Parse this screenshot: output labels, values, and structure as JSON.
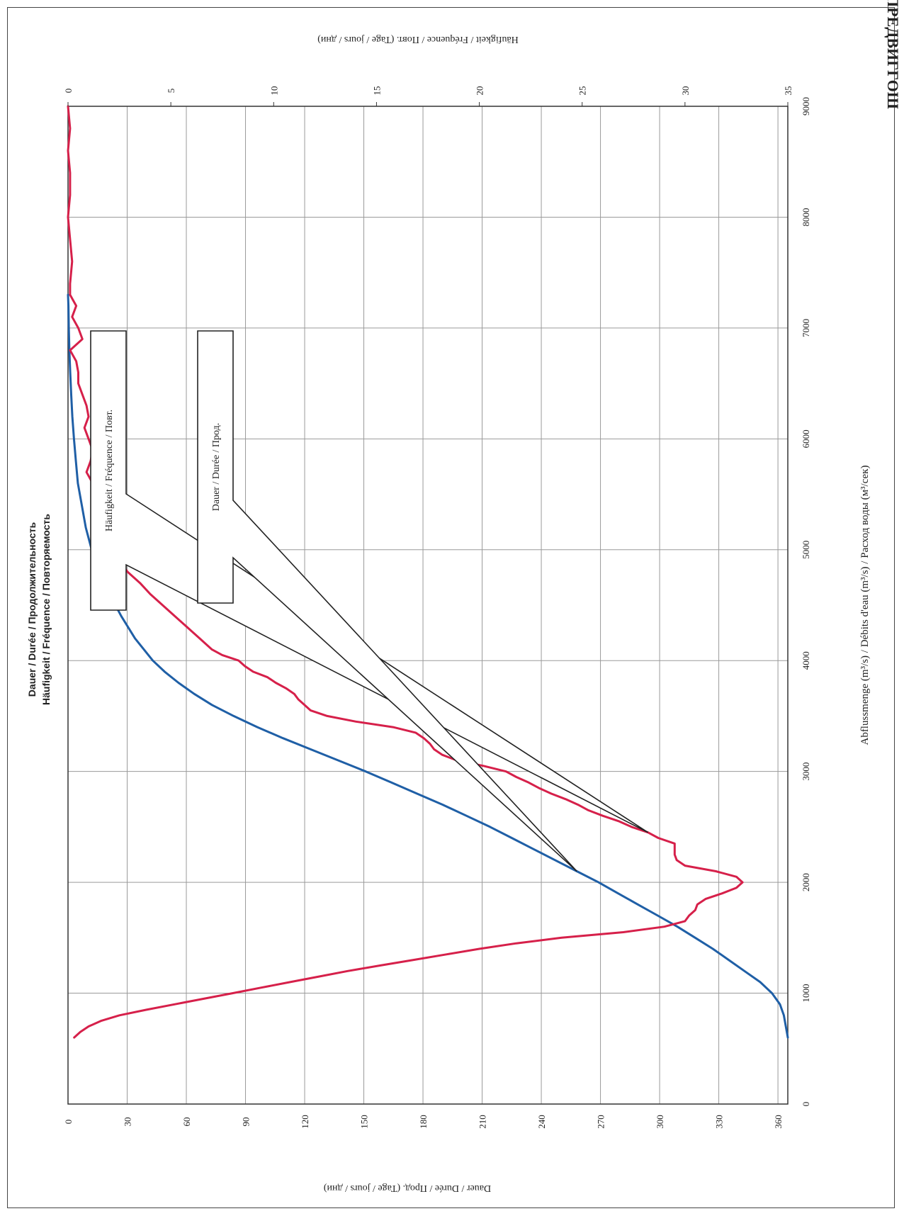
{
  "header_fragment": "ПРЕДВИГГОШ",
  "chart_data": {
    "type": "line",
    "title": "Dauer / Durée / Продолжительность",
    "subtitle": "Häufigkeit /  Fréquence / Повторяемость",
    "xlabel": "Abflussmenge  (m³/s) / Débits d'eau (m³/s) / Расход воды (м³/сек)",
    "ylabel_left": "Dauer / Durée / Прод. (Tage / jours / дни)",
    "ylabel_right": "Häufigkeit /  Fréquence / Повт. (Tage / jours / дни)",
    "xlim": [
      0,
      9000
    ],
    "ylim_left": [
      0,
      365
    ],
    "ylim_right": [
      0,
      35
    ],
    "x_ticks": [
      "0",
      "1000",
      "2000",
      "3000",
      "4000",
      "5000",
      "6000",
      "7000",
      "8000",
      "9000"
    ],
    "y_ticks_left": [
      "0",
      "30",
      "60",
      "90",
      "120",
      "150",
      "180",
      "210",
      "240",
      "270",
      "300",
      "330",
      "360"
    ],
    "y_ticks_right": [
      "0",
      "5",
      "10",
      "15",
      "20",
      "25",
      "30",
      "35"
    ],
    "grid": true,
    "series": [
      {
        "name": "Dauer / Durée / Прод.",
        "axis": "left",
        "color": "#1f5fa6",
        "x": [
          600,
          700,
          800,
          900,
          1000,
          1100,
          1200,
          1300,
          1400,
          1500,
          1600,
          1700,
          1800,
          1900,
          2000,
          2100,
          2200,
          2300,
          2400,
          2500,
          2600,
          2700,
          2800,
          2900,
          3000,
          3100,
          3200,
          3300,
          3400,
          3500,
          3600,
          3700,
          3800,
          3900,
          4000,
          4200,
          4400,
          4600,
          4800,
          5000,
          5200,
          5400,
          5600,
          5800,
          6000,
          6200,
          6400,
          6600,
          6800,
          7000,
          7200,
          7300
        ],
        "y": [
          365,
          364,
          363,
          361,
          357,
          351,
          343,
          335,
          327,
          318,
          309,
          299,
          289,
          279,
          269,
          258,
          247,
          236,
          225,
          214,
          202,
          190,
          177,
          164,
          151,
          137,
          123,
          109,
          96,
          84,
          73,
          64,
          56,
          49,
          43,
          34,
          27,
          21,
          16,
          12,
          9,
          7,
          5,
          4,
          3,
          2.2,
          1.6,
          1.1,
          0.7,
          0.4,
          0.2,
          0
        ]
      },
      {
        "name": "Häufigkeit / Fréquence / Повт.",
        "axis": "right",
        "color": "#d6204a",
        "x": [
          600,
          650,
          700,
          750,
          800,
          850,
          900,
          950,
          1000,
          1050,
          1100,
          1150,
          1200,
          1250,
          1300,
          1350,
          1400,
          1450,
          1500,
          1550,
          1600,
          1650,
          1700,
          1750,
          1800,
          1850,
          1900,
          1950,
          2000,
          2050,
          2100,
          2150,
          2200,
          2250,
          2300,
          2350,
          2400,
          2450,
          2500,
          2550,
          2600,
          2650,
          2700,
          2750,
          2800,
          2850,
          2900,
          2950,
          3000,
          3050,
          3100,
          3150,
          3200,
          3250,
          3300,
          3350,
          3400,
          3450,
          3500,
          3550,
          3600,
          3650,
          3700,
          3750,
          3800,
          3850,
          3900,
          3950,
          4000,
          4050,
          4100,
          4150,
          4200,
          4300,
          4400,
          4500,
          4600,
          4700,
          4800,
          4900,
          5000,
          5100,
          5200,
          5300,
          5400,
          5500,
          5600,
          5700,
          5800,
          5900,
          6000,
          6100,
          6200,
          6300,
          6400,
          6500,
          6600,
          6700,
          6800,
          6900,
          7000,
          7100,
          7200,
          7300,
          7400,
          7600,
          7800,
          8000,
          8200,
          8400,
          8600,
          8800,
          9000
        ],
        "y": [
          0.3,
          0.6,
          1.0,
          1.6,
          2.5,
          3.8,
          5.2,
          6.6,
          8.0,
          9.4,
          10.8,
          12.2,
          13.6,
          15.2,
          16.8,
          18.4,
          20.0,
          21.8,
          24.0,
          27.0,
          29.0,
          30.0,
          30.2,
          30.5,
          30.6,
          31.0,
          31.8,
          32.5,
          32.8,
          32.5,
          31.5,
          30.0,
          29.6,
          29.5,
          29.5,
          29.5,
          28.7,
          28.2,
          27.4,
          26.8,
          26.0,
          25.3,
          24.8,
          24.2,
          23.5,
          22.9,
          22.4,
          21.8,
          21.3,
          20.2,
          18.9,
          18.2,
          17.8,
          17.6,
          17.3,
          16.9,
          15.8,
          14.0,
          12.6,
          11.8,
          11.5,
          11.2,
          11.0,
          10.6,
          10.1,
          9.7,
          9.0,
          8.6,
          8.3,
          7.5,
          7.0,
          6.7,
          6.4,
          5.8,
          5.2,
          4.6,
          4.0,
          3.5,
          2.9,
          2.5,
          2.2,
          1.9,
          1.7,
          1.7,
          1.9,
          1.6,
          1.2,
          0.9,
          1.1,
          1.2,
          1.0,
          0.8,
          1.0,
          0.9,
          0.7,
          0.5,
          0.5,
          0.4,
          0.1,
          0.7,
          0.5,
          0.2,
          0.4,
          0.1,
          0.1,
          0.2,
          0.1,
          0,
          0.1,
          0.1,
          0,
          0.1,
          0
        ]
      }
    ],
    "callouts": [
      {
        "label": "Häufigkeit /  Fréquence / Повт.",
        "target_series": 1
      },
      {
        "label": "Dauer / Durée / Прод.",
        "target_series": 0
      }
    ]
  }
}
